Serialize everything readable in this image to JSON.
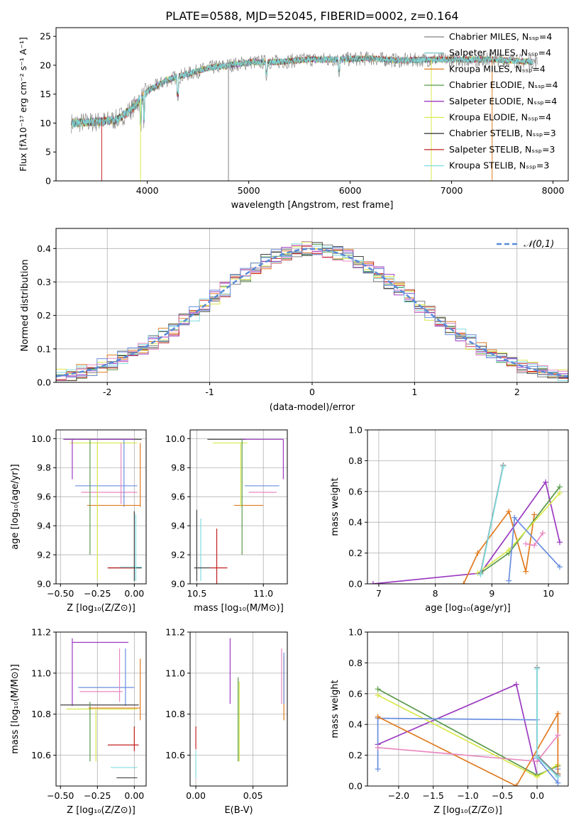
{
  "figure": {
    "title": "PLATE=0588, MJD=52045, FIBERID=0002, z=0.164"
  },
  "colors": {
    "chabrier_miles": "#808080",
    "salpeter_miles": "#7fc6c6",
    "kroupa_miles": "#e07b20",
    "chabrier_elodie": "#5a9a4a",
    "salpeter_elodie": "#9b3ac0",
    "kroupa_elodie": "#d8e84a",
    "chabrier_stelib": "#404040",
    "salpeter_stelib": "#c02020",
    "kroupa_stelib": "#80dde0",
    "pink": "#e888c0",
    "blue": "#6a8ee0",
    "gaussian": "#5a8ad8"
  },
  "chart_data": [
    {
      "id": "spectrum",
      "type": "line",
      "title": "PLATE=0588, MJD=52045, FIBERID=0002, z=0.164",
      "xlabel": "wavelength [Angstrom, rest frame]",
      "ylabel": "Flux [fλ10⁻¹⁷ erg cm⁻² s⁻¹ A⁻¹]",
      "xlim": [
        3100,
        8150
      ],
      "ylim": [
        0,
        26.5
      ],
      "xticks": [
        4000,
        5000,
        6000,
        7000,
        8000
      ],
      "yticks": [
        0,
        5,
        10,
        15,
        20,
        25
      ],
      "grid": false,
      "legend_position": "top-right",
      "legend": [
        "Chabrier MILES, N_SSP=4",
        "Salpeter MILES, N_SSP=4",
        "Kroupa MILES, N_SSP=4",
        "Chabrier ELODIE, N_SSP=4",
        "Salpeter ELODIE, N_SSP=4",
        "Kroupa ELODIE, N_SSP=4",
        "Chabrier STELIB, N_SSP=3",
        "Salpeter STELIB, N_SSP=3",
        "Kroupa STELIB, N_SSP=3"
      ],
      "continuum": {
        "x": [
          3250,
          3500,
          3700,
          3850,
          4000,
          4200,
          4400,
          4600,
          4800,
          5000,
          5300,
          5600,
          5900,
          6200,
          6500,
          6800,
          7100,
          7400,
          7700,
          7850
        ],
        "y": [
          10.0,
          10.2,
          10.6,
          12.5,
          15.5,
          17.5,
          18.5,
          19.5,
          20.0,
          20.5,
          20.6,
          21.0,
          21.0,
          21.2,
          20.8,
          21.0,
          21.0,
          21.0,
          20.7,
          20.5
        ]
      },
      "absorption_lines": [
        {
          "x": 3550,
          "y": 0
        },
        {
          "x": 3933,
          "y": 0
        },
        {
          "x": 4800,
          "y": 0
        },
        {
          "x": 6800,
          "y": 0
        },
        {
          "x": 7400,
          "y": 0
        }
      ]
    },
    {
      "id": "residuals",
      "type": "step",
      "xlabel": "(data-model)/error",
      "ylabel": "Normed distribution",
      "xlim": [
        -2.5,
        2.5
      ],
      "ylim": [
        0,
        0.46
      ],
      "xticks": [
        -2,
        -1,
        0,
        1,
        2
      ],
      "yticks": [
        0.0,
        0.1,
        0.2,
        0.3,
        0.4
      ],
      "grid": true,
      "legend": [
        "𝒩(0,1)"
      ],
      "legend_position": "top-right",
      "bin_width": 0.1
    },
    {
      "id": "age_vs_Z",
      "type": "errorbar",
      "xlabel": "Z [log₁₀(Z/Z⊙)]",
      "ylabel": "age  [log₁₀(age/yr)]",
      "xlim": [
        -0.53,
        0.08
      ],
      "ylim": [
        9.0,
        10.06
      ],
      "xticks": [
        -0.5,
        -0.25,
        0.0
      ],
      "xticklabels": [
        "−0.50",
        "−0.25",
        "0.00"
      ],
      "yticks": [
        9.0,
        9.2,
        9.4,
        9.6,
        9.8,
        10.0
      ],
      "yticklabels": [
        "9.0",
        "9.2",
        "9.4",
        "9.6",
        "9.8",
        "10.0"
      ],
      "grid": true,
      "segments": [
        {
          "c": "chabrier_stelib",
          "x0": -0.48,
          "x1": 0.05,
          "y0": 9.995,
          "y1": 9.995
        },
        {
          "c": "salpeter_elodie",
          "x0": -0.48,
          "x1": 0.0,
          "y0": 9.995,
          "y1": 9.995
        },
        {
          "c": "kroupa_elodie",
          "x0": -0.44,
          "x1": 0.02,
          "y0": 9.97,
          "y1": 9.97
        },
        {
          "c": "salpeter_elodie",
          "x0": -0.42,
          "x1": -0.42,
          "y0": 9.72,
          "y1": 9.995
        },
        {
          "c": "kroupa_miles",
          "x0": 0.04,
          "x1": 0.04,
          "y0": 9.53,
          "y1": 9.97
        },
        {
          "c": "blue",
          "x0": -0.4,
          "x1": 0.02,
          "y0": 9.675,
          "y1": 9.675
        },
        {
          "c": "pink",
          "x0": -0.36,
          "x1": 0.02,
          "y0": 9.63,
          "y1": 9.63
        },
        {
          "c": "pink",
          "x0": -0.09,
          "x1": -0.09,
          "y0": 9.55,
          "y1": 9.97
        },
        {
          "c": "blue",
          "x0": -0.07,
          "x1": -0.07,
          "y0": 9.53,
          "y1": 9.995
        },
        {
          "c": "kroupa_miles",
          "x0": -0.32,
          "x1": 0.04,
          "y0": 9.54,
          "y1": 9.54
        },
        {
          "c": "chabrier_elodie",
          "x0": -0.3,
          "x1": -0.3,
          "y0": 9.2,
          "y1": 9.995
        },
        {
          "c": "kroupa_elodie",
          "x0": -0.25,
          "x1": -0.25,
          "y0": 9.03,
          "y1": 9.97
        },
        {
          "c": "chabrier_stelib",
          "x0": -0.18,
          "x1": 0.05,
          "y0": 9.11,
          "y1": 9.11
        },
        {
          "c": "salpeter_stelib",
          "x0": -0.18,
          "x1": 0.0,
          "y0": 9.11,
          "y1": 9.11
        },
        {
          "c": "kroupa_stelib",
          "x0": -0.1,
          "x1": 0.05,
          "y0": 9.115,
          "y1": 9.115
        },
        {
          "c": "chabrier_stelib",
          "x0": 0.0,
          "x1": 0.0,
          "y0": 9.02,
          "y1": 9.5
        },
        {
          "c": "kroupa_stelib",
          "x0": 0.01,
          "x1": 0.01,
          "y0": 9.02,
          "y1": 9.48
        }
      ]
    },
    {
      "id": "age_vs_mass",
      "type": "errorbar",
      "xlabel": "mass [log₁₀(M/M⊙)]",
      "ylabel": "",
      "xlim": [
        10.45,
        11.18
      ],
      "ylim": [
        9.0,
        10.06
      ],
      "xticks": [
        10.5,
        11.0
      ],
      "xticklabels": [
        "10.5",
        "11.0"
      ],
      "yticks": [
        9.0,
        9.2,
        9.4,
        9.6,
        9.8,
        10.0
      ],
      "yticklabels": [
        "9.0",
        "9.2",
        "9.4",
        "9.6",
        "9.8",
        "10.0"
      ],
      "grid": true,
      "segments": [
        {
          "c": "chabrier_stelib",
          "x0": 10.58,
          "x1": 10.87,
          "y0": 9.995,
          "y1": 9.995
        },
        {
          "c": "salpeter_elodie",
          "x0": 10.84,
          "x1": 11.15,
          "y0": 9.995,
          "y1": 9.995
        },
        {
          "c": "kroupa_elodie",
          "x0": 10.62,
          "x1": 10.88,
          "y0": 9.97,
          "y1": 9.97
        },
        {
          "c": "salpeter_elodie",
          "x0": 11.15,
          "x1": 11.15,
          "y0": 9.72,
          "y1": 9.995
        },
        {
          "c": "blue",
          "x0": 10.86,
          "x1": 11.12,
          "y0": 9.675,
          "y1": 9.675
        },
        {
          "c": "pink",
          "x0": 10.89,
          "x1": 11.1,
          "y0": 9.63,
          "y1": 9.63
        },
        {
          "c": "kroupa_miles",
          "x0": 10.78,
          "x1": 11.0,
          "y0": 9.54,
          "y1": 9.54
        },
        {
          "c": "chabrier_elodie",
          "x0": 10.84,
          "x1": 10.84,
          "y0": 9.2,
          "y1": 9.995
        },
        {
          "c": "kroupa_elodie",
          "x0": 10.83,
          "x1": 10.83,
          "y0": 9.53,
          "y1": 9.97
        },
        {
          "c": "salpeter_stelib",
          "x0": 10.65,
          "x1": 10.65,
          "y0": 9.0,
          "y1": 9.38
        },
        {
          "c": "salpeter_stelib",
          "x0": 10.6,
          "x1": 10.73,
          "y0": 9.11,
          "y1": 9.11
        },
        {
          "c": "chabrier_stelib",
          "x0": 10.5,
          "x1": 10.5,
          "y0": 9.02,
          "y1": 9.51
        },
        {
          "c": "kroupa_stelib",
          "x0": 10.53,
          "x1": 10.53,
          "y0": 9.02,
          "y1": 9.45
        },
        {
          "c": "chabrier_stelib",
          "x0": 10.48,
          "x1": 10.6,
          "y0": 9.11,
          "y1": 9.11
        }
      ]
    },
    {
      "id": "weight_vs_age",
      "type": "line",
      "xlabel": "age  [log₁₀(age/yr)]",
      "ylabel": "mass weight",
      "xlim": [
        6.8,
        10.35
      ],
      "ylim": [
        0,
        1.0
      ],
      "xticks": [
        7,
        8,
        9,
        10
      ],
      "xticklabels": [
        "7",
        "8",
        "9",
        "10"
      ],
      "yticks": [
        0.0,
        0.2,
        0.4,
        0.6,
        0.8,
        1.0
      ],
      "yticklabels": [
        "0.0",
        "0.2",
        "0.4",
        "0.6",
        "0.8",
        "1.0"
      ],
      "grid": true,
      "series": [
        {
          "c": "salpeter_elodie",
          "x": [
            6.9,
            8.8,
            9.95,
            10.2
          ],
          "y": [
            0.0,
            0.07,
            0.66,
            0.27
          ]
        },
        {
          "c": "kroupa_miles",
          "x": [
            8.5,
            8.75,
            9.3,
            9.6,
            9.75
          ],
          "y": [
            0.0,
            0.2,
            0.47,
            0.08,
            0.45
          ]
        },
        {
          "c": "chabrier_elodie",
          "x": [
            8.8,
            9.3,
            10.2
          ],
          "y": [
            0.07,
            0.2,
            0.63
          ]
        },
        {
          "c": "kroupa_elodie",
          "x": [
            8.75,
            9.3,
            10.2
          ],
          "y": [
            0.07,
            0.22,
            0.59
          ]
        },
        {
          "c": "blue",
          "x": [
            9.3,
            9.4,
            10.2
          ],
          "y": [
            0.02,
            0.43,
            0.11
          ]
        },
        {
          "c": "pink",
          "x": [
            9.6,
            9.75,
            9.9
          ],
          "y": [
            0.26,
            0.25,
            0.33
          ]
        },
        {
          "c": "chabrier_miles",
          "x": [
            8.8,
            9.2
          ],
          "y": [
            0.07,
            0.77
          ]
        },
        {
          "c": "kroupa_stelib",
          "x": [
            8.8,
            9.2
          ],
          "y": [
            0.06,
            0.76
          ]
        }
      ]
    },
    {
      "id": "mass_vs_Z",
      "type": "errorbar",
      "xlabel": "Z [log₁₀(Z/Z⊙)]",
      "ylabel": "mass [log₁₀(M/M⊙)]",
      "xlim": [
        -0.53,
        0.08
      ],
      "ylim": [
        10.45,
        11.2
      ],
      "xticks": [
        -0.5,
        -0.25,
        0.0
      ],
      "xticklabels": [
        "−0.50",
        "−0.25",
        "0.00"
      ],
      "yticks": [
        10.6,
        10.8,
        11.0,
        11.2
      ],
      "yticklabels": [
        "10.6",
        "10.8",
        "11.0",
        "11.2"
      ],
      "grid": true,
      "segments": [
        {
          "c": "salpeter_elodie",
          "x0": -0.42,
          "x1": -0.04,
          "y0": 11.15,
          "y1": 11.15
        },
        {
          "c": "salpeter_elodie",
          "x0": -0.42,
          "x1": -0.42,
          "y0": 10.84,
          "y1": 11.17
        },
        {
          "c": "blue",
          "x0": -0.38,
          "x1": 0.0,
          "y0": 10.93,
          "y1": 10.93
        },
        {
          "c": "pink",
          "x0": -0.37,
          "x1": -0.08,
          "y0": 10.91,
          "y1": 10.91
        },
        {
          "c": "pink",
          "x0": -0.1,
          "x1": -0.1,
          "y0": 10.86,
          "y1": 11.12
        },
        {
          "c": "blue",
          "x0": -0.06,
          "x1": -0.06,
          "y0": 10.84,
          "y1": 11.12
        },
        {
          "c": "kroupa_miles",
          "x0": 0.04,
          "x1": 0.04,
          "y0": 10.77,
          "y1": 11.07
        },
        {
          "c": "chabrier_stelib",
          "x0": -0.5,
          "x1": 0.03,
          "y0": 10.845,
          "y1": 10.845
        },
        {
          "c": "kroupa_elodie",
          "x0": -0.46,
          "x1": 0.02,
          "y0": 10.825,
          "y1": 10.825
        },
        {
          "c": "chabrier_elodie",
          "x0": -0.3,
          "x1": -0.3,
          "y0": 10.57,
          "y1": 10.86
        },
        {
          "c": "kroupa_elodie",
          "x0": -0.26,
          "x1": -0.26,
          "y0": 10.57,
          "y1": 10.82
        },
        {
          "c": "kroupa_miles",
          "x0": -0.31,
          "x1": 0.04,
          "y0": 10.83,
          "y1": 10.83
        },
        {
          "c": "salpeter_stelib",
          "x0": -0.18,
          "x1": 0.03,
          "y0": 10.65,
          "y1": 10.65
        },
        {
          "c": "salpeter_stelib",
          "x0": 0.0,
          "x1": 0.0,
          "y0": 10.62,
          "y1": 10.74
        },
        {
          "c": "kroupa_stelib",
          "x0": -0.16,
          "x1": 0.02,
          "y0": 10.54,
          "y1": 10.54
        },
        {
          "c": "chabrier_stelib",
          "x0": -0.12,
          "x1": 0.02,
          "y0": 10.49,
          "y1": 10.49
        }
      ]
    },
    {
      "id": "mass_vs_ebv",
      "type": "errorbar",
      "xlabel": "E(B-V)",
      "ylabel": "",
      "xlim": [
        -0.005,
        0.08
      ],
      "ylim": [
        10.45,
        11.2
      ],
      "xticks": [
        0.0,
        0.05
      ],
      "xticklabels": [
        "0.00",
        "0.05"
      ],
      "yticks": [
        10.6,
        10.8,
        11.0,
        11.2
      ],
      "yticklabels": [
        "10.6",
        "10.8",
        "11.0",
        "11.2"
      ],
      "grid": true,
      "segments": [
        {
          "c": "salpeter_stelib",
          "x0": 0.0,
          "x1": 0.0,
          "y0": 10.63,
          "y1": 10.74
        },
        {
          "c": "kroupa_stelib",
          "x0": 0.0,
          "x1": 0.0,
          "y0": 10.49,
          "y1": 10.62
        },
        {
          "c": "salpeter_elodie",
          "x0": 0.03,
          "x1": 0.03,
          "y0": 10.85,
          "y1": 11.17
        },
        {
          "c": "chabrier_elodie",
          "x0": 0.037,
          "x1": 0.037,
          "y0": 10.57,
          "y1": 10.98
        },
        {
          "c": "kroupa_elodie",
          "x0": 0.038,
          "x1": 0.038,
          "y0": 10.57,
          "y1": 10.96
        },
        {
          "c": "pink",
          "x0": 0.075,
          "x1": 0.075,
          "y0": 10.85,
          "y1": 11.12
        },
        {
          "c": "kroupa_miles",
          "x0": 0.077,
          "x1": 0.077,
          "y0": 10.77,
          "y1": 11.08
        },
        {
          "c": "blue",
          "x0": 0.077,
          "x1": 0.077,
          "y0": 10.85,
          "y1": 11.1
        }
      ]
    },
    {
      "id": "weight_vs_Z",
      "type": "line",
      "xlabel": "Z [log₁₀(Z/Z⊙)]",
      "ylabel": "mass weight",
      "xlim": [
        -2.45,
        0.45
      ],
      "ylim": [
        0,
        1.0
      ],
      "xticks": [
        -2.0,
        -1.5,
        -1.0,
        -0.5,
        0.0
      ],
      "xticklabels": [
        "−2.0",
        "−1.5",
        "−1.0",
        "−0.5",
        "0.0"
      ],
      "yticks": [
        0.0,
        0.2,
        0.4,
        0.6,
        0.8,
        1.0
      ],
      "yticklabels": [
        "0.0",
        "0.2",
        "0.4",
        "0.6",
        "0.8",
        "1.0"
      ],
      "grid": true,
      "series": [
        {
          "c": "salpeter_elodie",
          "x": [
            -2.3,
            -0.3,
            0.0
          ],
          "y": [
            0.27,
            0.66,
            0.07
          ]
        },
        {
          "c": "chabrier_elodie",
          "x": [
            -2.3,
            0.0,
            0.3
          ],
          "y": [
            0.63,
            0.07,
            0.13
          ]
        },
        {
          "c": "kroupa_elodie",
          "x": [
            -2.3,
            0.0,
            0.3
          ],
          "y": [
            0.59,
            0.06,
            0.14
          ]
        },
        {
          "c": "blue",
          "x": [
            -2.3,
            -2.3,
            0.0,
            0.0,
            0.3,
            0.3
          ],
          "y": [
            0.11,
            0.44,
            0.43,
            0.18,
            0.02,
            0.11
          ]
        },
        {
          "c": "kroupa_miles",
          "x": [
            -2.3,
            -0.3,
            0.3,
            0.3
          ],
          "y": [
            0.45,
            0.0,
            0.47,
            0.08
          ]
        },
        {
          "c": "pink",
          "x": [
            -2.3,
            0.0,
            0.3
          ],
          "y": [
            0.25,
            0.16,
            0.33
          ]
        },
        {
          "c": "chabrier_miles",
          "x": [
            0.0,
            0.0,
            0.3
          ],
          "y": [
            0.77,
            0.2,
            0.07
          ]
        },
        {
          "c": "kroupa_stelib",
          "x": [
            0.0,
            0.0,
            0.3
          ],
          "y": [
            0.76,
            0.19,
            0.06
          ]
        }
      ]
    }
  ]
}
